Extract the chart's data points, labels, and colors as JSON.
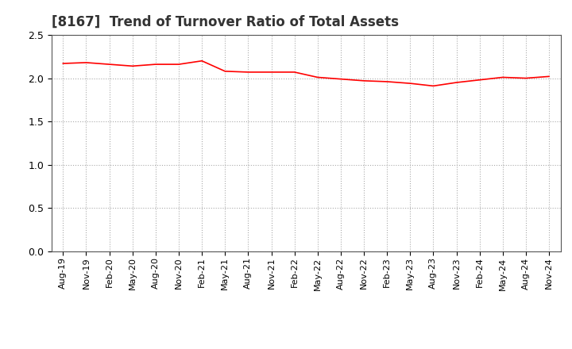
{
  "title": "[8167]  Trend of Turnover Ratio of Total Assets",
  "line_color": "#FF0000",
  "line_width": 1.2,
  "background_color": "#FFFFFF",
  "ylim": [
    0.0,
    2.5
  ],
  "yticks": [
    0.0,
    0.5,
    1.0,
    1.5,
    2.0,
    2.5
  ],
  "grid_color": "#AAAAAA",
  "x_labels": [
    "Aug-19",
    "Nov-19",
    "Feb-20",
    "May-20",
    "Aug-20",
    "Nov-20",
    "Feb-21",
    "May-21",
    "Aug-21",
    "Nov-21",
    "Feb-22",
    "May-22",
    "Aug-22",
    "Nov-22",
    "Feb-23",
    "May-23",
    "Aug-23",
    "Nov-23",
    "Feb-24",
    "May-24",
    "Aug-24",
    "Nov-24"
  ],
  "values": [
    2.17,
    2.18,
    2.16,
    2.14,
    2.16,
    2.16,
    2.2,
    2.08,
    2.07,
    2.07,
    2.07,
    2.01,
    1.99,
    1.97,
    1.96,
    1.94,
    1.91,
    1.95,
    1.98,
    2.01,
    2.0,
    2.02
  ],
  "title_fontsize": 12,
  "tick_fontsize": 8,
  "ytick_fontsize": 9
}
